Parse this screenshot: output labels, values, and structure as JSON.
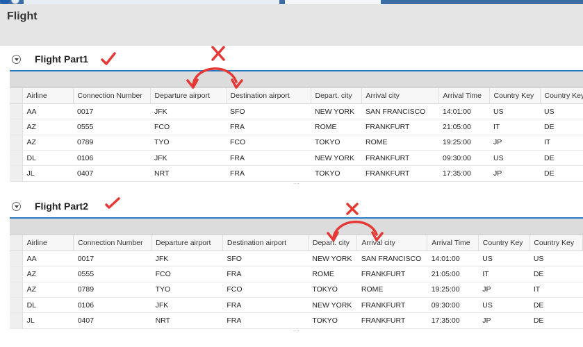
{
  "page": {
    "title": "Flight"
  },
  "columns1": [
    "Airline",
    "Connection Number",
    "Departure airport",
    "Destination airport",
    "Depart. city",
    "Arrival city",
    "Arrival Time",
    "Country Key",
    "Country Key"
  ],
  "columns2": [
    "Airline",
    "Connection Number",
    "Departure airport",
    "Destination airport",
    "Depart. city",
    "Arrival city",
    "Arrival Time",
    "Country Key",
    "Country Key"
  ],
  "part1": {
    "title": "Flight Part1",
    "rows": [
      [
        "AA",
        "0017",
        "JFK",
        "SFO",
        "NEW YORK",
        "SAN FRANCISCO",
        "14:01:00",
        "US",
        "US"
      ],
      [
        "AZ",
        "0555",
        "FCO",
        "FRA",
        "ROME",
        "FRANKFURT",
        "21:05:00",
        "IT",
        "DE"
      ],
      [
        "AZ",
        "0789",
        "TYO",
        "FCO",
        "TOKYO",
        "ROME",
        "19:25:00",
        "JP",
        "IT"
      ],
      [
        "DL",
        "0106",
        "JFK",
        "FRA",
        "NEW YORK",
        "FRANKFURT",
        "09:30:00",
        "US",
        "DE"
      ],
      [
        "JL",
        "0407",
        "NRT",
        "FRA",
        "TOKYO",
        "FRANKFURT",
        "17:35:00",
        "JP",
        "DE"
      ]
    ],
    "scroll_hint": "...."
  },
  "part2": {
    "title": "Flight Part2",
    "rows": [
      [
        "AA",
        "0017",
        "JFK",
        "SFO",
        "NEW YORK",
        "SAN FRANCISCO",
        "14:01:00",
        "US",
        "US"
      ],
      [
        "AZ",
        "0555",
        "FCO",
        "FRA",
        "ROME",
        "FRANKFURT",
        "21:05:00",
        "IT",
        "DE"
      ],
      [
        "AZ",
        "0789",
        "TYO",
        "FCO",
        "TOKYO",
        "ROME",
        "19:25:00",
        "JP",
        "IT"
      ],
      [
        "DL",
        "0106",
        "JFK",
        "FRA",
        "NEW YORK",
        "FRANKFURT",
        "09:30:00",
        "US",
        "DE"
      ],
      [
        "JL",
        "0407",
        "NRT",
        "FRA",
        "TOKYO",
        "FRANKFURT",
        "17:35:00",
        "JP",
        "DE"
      ]
    ],
    "scroll_hint": "...."
  },
  "annotations": {
    "color": "#e53935",
    "icons": [
      "check-icon",
      "cross-icon",
      "swap-arrow-icon"
    ]
  }
}
